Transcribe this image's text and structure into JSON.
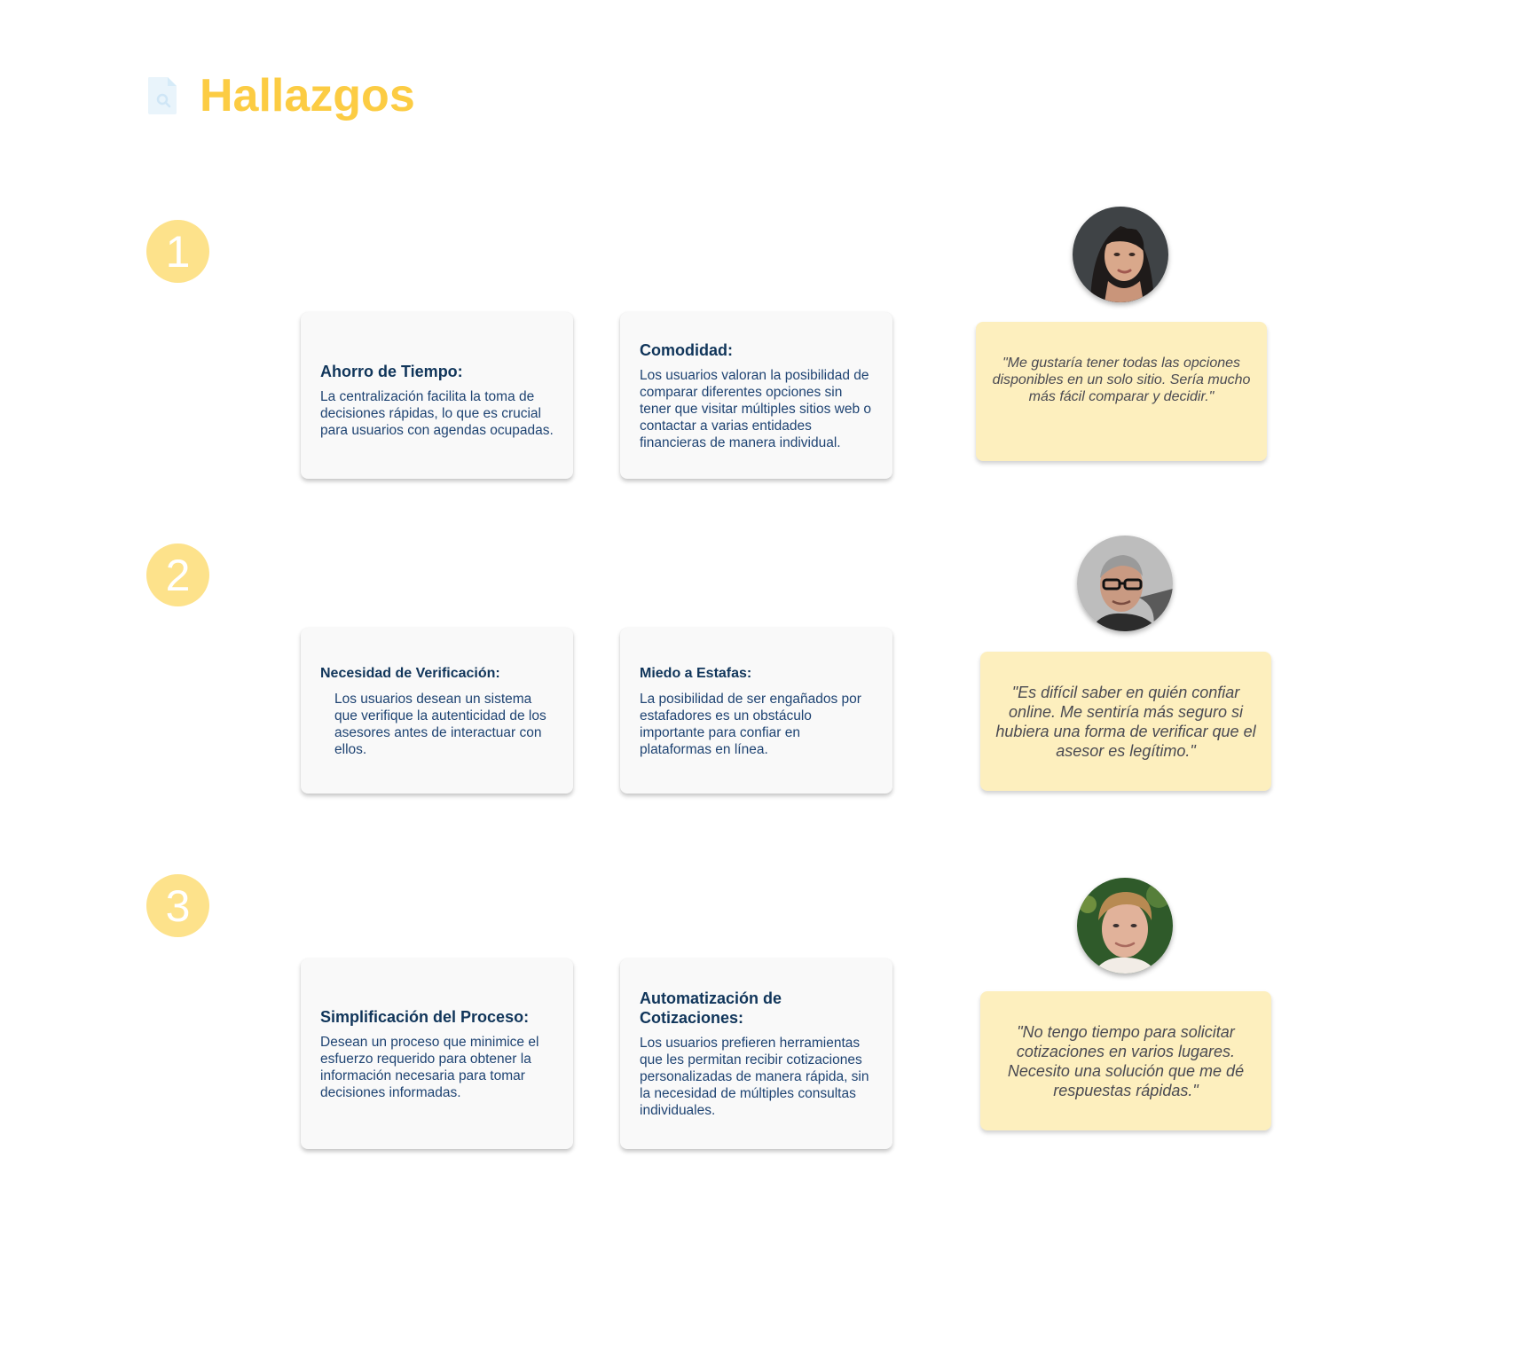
{
  "header": {
    "title": "Hallazgos",
    "icon": "document-search-icon"
  },
  "colors": {
    "title": "#fccc43",
    "badge": "#fde28b",
    "card_bg": "#f9f9f9",
    "card_text": "#1d3b66",
    "quote_bg": "#fdefbe",
    "quote_text": "#4a4a52"
  },
  "findings": [
    {
      "number": "1",
      "cards": [
        {
          "title": "Ahorro de Tiempo:",
          "body": "La centralización facilita la toma de decisiones rápidas, lo que es crucial para usuarios con agendas ocupadas."
        },
        {
          "title": "Comodidad:",
          "body": "Los usuarios valoran la posibilidad de comparar diferentes opciones sin tener que visitar múltiples sitios web o contactar a varias entidades financieras de manera individual."
        }
      ],
      "avatar": "woman-avatar-icon",
      "quote": "\"Me gustaría tener todas las opciones disponibles en un solo sitio. Sería mucho más fácil comparar y decidir.\""
    },
    {
      "number": "2",
      "cards": [
        {
          "title": "Necesidad de Verificación:",
          "body": "Los usuarios desean un sistema que verifique la autenticidad de los asesores antes de interactuar con ellos."
        },
        {
          "title": "Miedo a Estafas:",
          "body": "La posibilidad de ser engañados por estafadores es un obstáculo importante para confiar en plataformas en línea."
        }
      ],
      "avatar": "older-man-avatar-icon",
      "quote": "\"Es difícil saber en quién confiar online. Me sentiría más seguro si hubiera una forma de verificar que el asesor es legítimo.\""
    },
    {
      "number": "3",
      "cards": [
        {
          "title": "Simplificación del Proceso:",
          "body": "Desean un proceso que minimice el esfuerzo requerido para obtener la información necesaria para tomar decisiones informadas."
        },
        {
          "title": "Automatización de Cotizaciones:",
          "body": "Los usuarios prefieren herramientas que les permitan recibir cotizaciones personalizadas de manera rápida, sin la necesidad de múltiples consultas individuales."
        }
      ],
      "avatar": "young-man-avatar-icon",
      "quote": "\"No tengo tiempo para solicitar cotizaciones en varios lugares. Necesito una solución que me dé respuestas rápidas.\""
    }
  ]
}
